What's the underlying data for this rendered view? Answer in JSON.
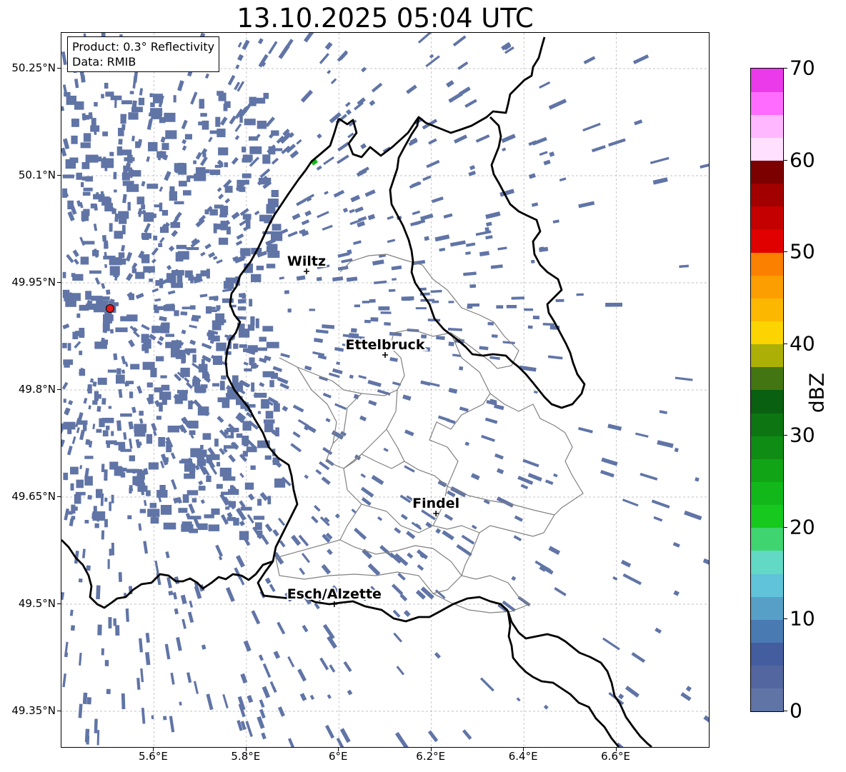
{
  "title": "13.10.2025 05:04 UTC",
  "info_box": {
    "product": "Product: 0.3° Reflectivity",
    "data": "Data: RMIB"
  },
  "lat_labels": [
    "50.25°N",
    "50.1°N",
    "49.95°N",
    "49.8°N",
    "49.65°N",
    "49.5°N",
    "49.35°N"
  ],
  "lon_labels": [
    "5.6°E",
    "5.8°E",
    "6°E",
    "6.2°E",
    "6.4°E",
    "6.6°E"
  ],
  "cities": [
    {
      "name": "Wiltz",
      "lon": 5.93,
      "lat": 49.966
    },
    {
      "name": "Ettelbruck",
      "lon": 6.1,
      "lat": 49.849
    },
    {
      "name": "Findel",
      "lon": 6.21,
      "lat": 49.627
    },
    {
      "name": "Esch/Alzette",
      "lon": 5.99,
      "lat": 49.5
    }
  ],
  "radar_site": {
    "lon": 5.505,
    "lat": 49.914,
    "color": "#e41a1c"
  },
  "map_extent": {
    "lon_min": 5.4,
    "lon_max": 6.8,
    "lat_min": 49.3,
    "lat_max": 50.3
  },
  "colorbar": {
    "unit": "dBZ",
    "min": 0,
    "max": 70,
    "tick_labels": [
      "0",
      "10",
      "20",
      "30",
      "40",
      "50",
      "60",
      "70"
    ],
    "colors": [
      "#6074a6",
      "#5366a0",
      "#445d9f",
      "#497ab2",
      "#579fc6",
      "#60c3d9",
      "#61d9c4",
      "#3fd46f",
      "#17c81f",
      "#12b81a",
      "#12a417",
      "#0f8c14",
      "#0d7612",
      "#0a6011",
      "#437612",
      "#acb006",
      "#fcd400",
      "#fcb800",
      "#fc9d00",
      "#fc8000",
      "#e00000",
      "#c40000",
      "#a20000",
      "#7c0000",
      "#ffe0ff",
      "#ffb8ff",
      "#ff6cff",
      "#ea3aea"
    ]
  },
  "echo_color": "#6074a6",
  "border_color": "#000000",
  "canton_color": "#808080"
}
